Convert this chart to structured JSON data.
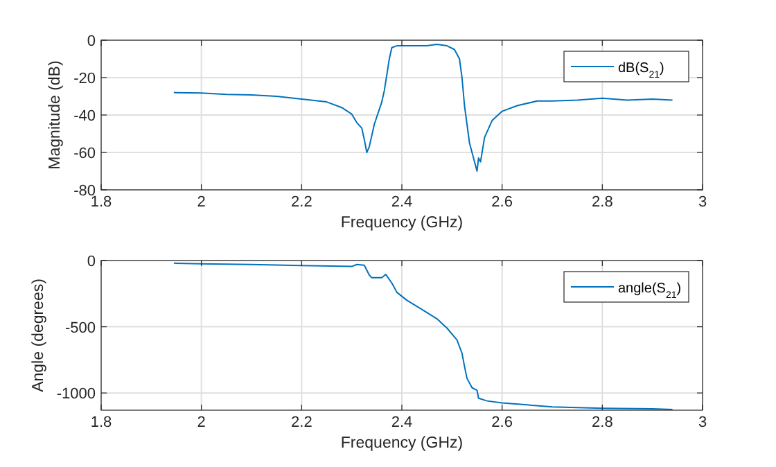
{
  "chart_data": [
    {
      "type": "line",
      "xlabel": "Frequency (GHz)",
      "ylabel": "Magnitude (dB)",
      "xlim": [
        1.8,
        3
      ],
      "xticks": [
        1.8,
        2,
        2.2,
        2.4,
        2.6,
        2.8,
        3
      ],
      "ylim": [
        -80,
        0
      ],
      "yticks": [
        -80,
        -60,
        -40,
        -20,
        0
      ],
      "grid": true,
      "legend": "top right",
      "series": [
        {
          "name": "dB(S$_{21}$)",
          "color": "#0072bd",
          "x": [
            1.945,
            2.0,
            2.05,
            2.1,
            2.15,
            2.2,
            2.25,
            2.28,
            2.3,
            2.31,
            2.32,
            2.325,
            2.33,
            2.335,
            2.345,
            2.36,
            2.365,
            2.375,
            2.38,
            2.39,
            2.42,
            2.45,
            2.47,
            2.49,
            2.505,
            2.515,
            2.52,
            2.525,
            2.535,
            2.545,
            2.55,
            2.553,
            2.557,
            2.565,
            2.58,
            2.6,
            2.63,
            2.67,
            2.7,
            2.75,
            2.8,
            2.85,
            2.9,
            2.94
          ],
          "values": [
            -28,
            -28.2,
            -29,
            -29.3,
            -30,
            -31.5,
            -33,
            -36,
            -39.5,
            -44,
            -47,
            -53,
            -60,
            -57,
            -45,
            -33,
            -27,
            -10,
            -4,
            -3,
            -3,
            -3,
            -2.2,
            -3,
            -5,
            -10,
            -20,
            -35,
            -55,
            -65,
            -70,
            -63,
            -65,
            -52,
            -43,
            -38,
            -35,
            -32.5,
            -32.5,
            -32,
            -31,
            -32,
            -31.5,
            -32
          ]
        }
      ]
    },
    {
      "type": "line",
      "xlabel": "Frequency (GHz)",
      "ylabel": "Angle (degrees)",
      "xlim": [
        1.8,
        3
      ],
      "xticks": [
        1.8,
        2,
        2.2,
        2.4,
        2.6,
        2.8,
        3
      ],
      "ylim": [
        -1130,
        0
      ],
      "yticks": [
        -1000,
        -500,
        0
      ],
      "grid": true,
      "legend": "top right",
      "series": [
        {
          "name": "angle(S$_{21}$)",
          "color": "#0072bd",
          "x": [
            1.945,
            2.0,
            2.1,
            2.2,
            2.3,
            2.31,
            2.325,
            2.335,
            2.34,
            2.36,
            2.368,
            2.38,
            2.39,
            2.41,
            2.44,
            2.47,
            2.49,
            2.51,
            2.52,
            2.525,
            2.53,
            2.54,
            2.55,
            2.553,
            2.57,
            2.6,
            2.65,
            2.7,
            2.8,
            2.9,
            2.94
          ],
          "values": [
            -20,
            -25,
            -30,
            -38,
            -45,
            -30,
            -35,
            -110,
            -130,
            -130,
            -105,
            -170,
            -240,
            -300,
            -370,
            -440,
            -510,
            -600,
            -700,
            -800,
            -890,
            -960,
            -980,
            -1040,
            -1060,
            -1075,
            -1090,
            -1105,
            -1115,
            -1120,
            -1125
          ]
        }
      ]
    }
  ]
}
